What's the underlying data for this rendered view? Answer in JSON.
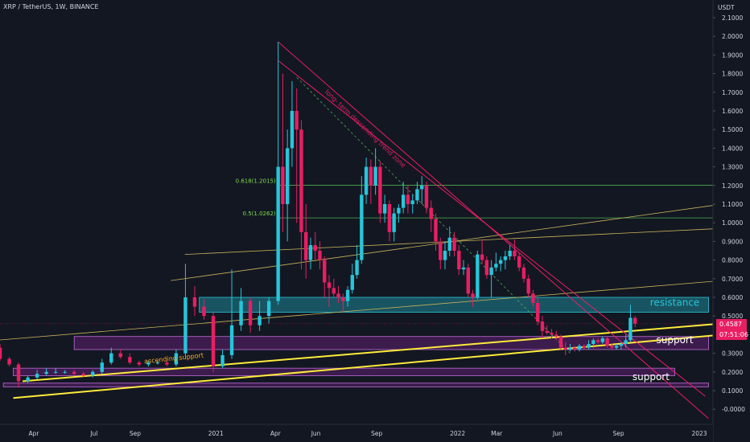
{
  "header": {
    "title": "XRP / TetherUS, 1W, BINANCE",
    "currency": "USDT"
  },
  "price_tags": {
    "last_price": "0.4587",
    "countdown": "07:51:06"
  },
  "colors": {
    "background": "#131722",
    "bull": "#26c6da",
    "bear": "#e91e63",
    "axis_text": "#d1d4dc",
    "fib": "#4caf50",
    "channel": "#c9b458",
    "support_line": "#ffeb3b",
    "zone_resistance": "#26c6da",
    "zone_support": "#9c27b0"
  },
  "chart_data": {
    "type": "candlestick",
    "title": "XRP / TetherUS, 1W, BINANCE",
    "ylabel": "USDT",
    "ylim": [
      -0.1,
      2.1
    ],
    "yticks": [
      2.1,
      2.0,
      1.9,
      1.8,
      1.7,
      1.6,
      1.5,
      1.4,
      1.3,
      1.2,
      1.1,
      1.0,
      0.9,
      0.8,
      0.7,
      0.6,
      0.5,
      0.3,
      0.2,
      0.1,
      0.0
    ],
    "ytick_labels": [
      "2.1000",
      "2.0000",
      "1.9000",
      "1.8000",
      "1.7000",
      "1.6000",
      "1.5000",
      "1.4000",
      "1.3000",
      "1.2000",
      "1.1000",
      "1.0000",
      "0.9000",
      "0.8000",
      "0.7000",
      "0.6000",
      "0.5000",
      "0.3000",
      "0.2000",
      "0.1000",
      "-0.0000"
    ],
    "xticks": [
      {
        "label": "Apr",
        "date": "2020-04-01"
      },
      {
        "label": "Jul",
        "date": "2020-07-01"
      },
      {
        "label": "Sep",
        "date": "2020-09-01"
      },
      {
        "label": "2021",
        "date": "2021-01-01"
      },
      {
        "label": "Apr",
        "date": "2021-04-01"
      },
      {
        "label": "Jun",
        "date": "2021-06-01"
      },
      {
        "label": "Sep",
        "date": "2021-09-01"
      },
      {
        "label": "2022",
        "date": "2022-01-01"
      },
      {
        "label": "Mar",
        "date": "2022-03-01"
      },
      {
        "label": "Jun",
        "date": "2022-06-01"
      },
      {
        "label": "Sep",
        "date": "2022-09-01"
      },
      {
        "label": "2023",
        "date": "2023-01-01"
      }
    ],
    "last_price": 0.4587,
    "candles": [
      {
        "d": "2020-02-10",
        "o": 0.33,
        "h": 0.35,
        "l": 0.26,
        "c": 0.27
      },
      {
        "d": "2020-02-24",
        "o": 0.27,
        "h": 0.28,
        "l": 0.23,
        "c": 0.24
      },
      {
        "d": "2020-03-09",
        "o": 0.24,
        "h": 0.25,
        "l": 0.12,
        "c": 0.15
      },
      {
        "d": "2020-03-23",
        "o": 0.15,
        "h": 0.18,
        "l": 0.14,
        "c": 0.17
      },
      {
        "d": "2020-04-06",
        "o": 0.17,
        "h": 0.21,
        "l": 0.16,
        "c": 0.19
      },
      {
        "d": "2020-04-20",
        "o": 0.19,
        "h": 0.22,
        "l": 0.18,
        "c": 0.2
      },
      {
        "d": "2020-05-04",
        "o": 0.2,
        "h": 0.22,
        "l": 0.19,
        "c": 0.2
      },
      {
        "d": "2020-05-18",
        "o": 0.2,
        "h": 0.21,
        "l": 0.19,
        "c": 0.2
      },
      {
        "d": "2020-06-01",
        "o": 0.2,
        "h": 0.21,
        "l": 0.18,
        "c": 0.19
      },
      {
        "d": "2020-06-15",
        "o": 0.19,
        "h": 0.2,
        "l": 0.17,
        "c": 0.18
      },
      {
        "d": "2020-06-29",
        "o": 0.18,
        "h": 0.21,
        "l": 0.17,
        "c": 0.2
      },
      {
        "d": "2020-07-13",
        "o": 0.2,
        "h": 0.27,
        "l": 0.19,
        "c": 0.25
      },
      {
        "d": "2020-07-27",
        "o": 0.25,
        "h": 0.33,
        "l": 0.24,
        "c": 0.3
      },
      {
        "d": "2020-08-10",
        "o": 0.3,
        "h": 0.32,
        "l": 0.27,
        "c": 0.28
      },
      {
        "d": "2020-08-24",
        "o": 0.28,
        "h": 0.3,
        "l": 0.24,
        "c": 0.25
      },
      {
        "d": "2020-09-07",
        "o": 0.25,
        "h": 0.26,
        "l": 0.23,
        "c": 0.24
      },
      {
        "d": "2020-09-21",
        "o": 0.24,
        "h": 0.26,
        "l": 0.23,
        "c": 0.25
      },
      {
        "d": "2020-10-05",
        "o": 0.25,
        "h": 0.26,
        "l": 0.24,
        "c": 0.25
      },
      {
        "d": "2020-10-19",
        "o": 0.25,
        "h": 0.26,
        "l": 0.23,
        "c": 0.24
      },
      {
        "d": "2020-11-02",
        "o": 0.24,
        "h": 0.32,
        "l": 0.23,
        "c": 0.3
      },
      {
        "d": "2020-11-16",
        "o": 0.3,
        "h": 0.78,
        "l": 0.28,
        "c": 0.6
      },
      {
        "d": "2020-11-30",
        "o": 0.6,
        "h": 0.66,
        "l": 0.5,
        "c": 0.55
      },
      {
        "d": "2020-12-14",
        "o": 0.55,
        "h": 0.59,
        "l": 0.48,
        "c": 0.5
      },
      {
        "d": "2020-12-28",
        "o": 0.5,
        "h": 0.52,
        "l": 0.2,
        "c": 0.23
      },
      {
        "d": "2021-01-11",
        "o": 0.23,
        "h": 0.32,
        "l": 0.22,
        "c": 0.29
      },
      {
        "d": "2021-01-25",
        "o": 0.29,
        "h": 0.75,
        "l": 0.27,
        "c": 0.45
      },
      {
        "d": "2021-02-08",
        "o": 0.45,
        "h": 0.65,
        "l": 0.42,
        "c": 0.58
      },
      {
        "d": "2021-02-22",
        "o": 0.58,
        "h": 0.6,
        "l": 0.41,
        "c": 0.45
      },
      {
        "d": "2021-03-08",
        "o": 0.45,
        "h": 0.58,
        "l": 0.42,
        "c": 0.5
      },
      {
        "d": "2021-03-22",
        "o": 0.5,
        "h": 0.6,
        "l": 0.46,
        "c": 0.58
      },
      {
        "d": "2021-04-05",
        "o": 0.58,
        "h": 1.97,
        "l": 0.56,
        "c": 1.3
      },
      {
        "d": "2021-04-12",
        "o": 1.3,
        "h": 1.8,
        "l": 0.95,
        "c": 1.1
      },
      {
        "d": "2021-04-19",
        "o": 1.1,
        "h": 1.5,
        "l": 0.9,
        "c": 1.4
      },
      {
        "d": "2021-04-26",
        "o": 1.4,
        "h": 1.76,
        "l": 1.3,
        "c": 1.6
      },
      {
        "d": "2021-05-03",
        "o": 1.6,
        "h": 1.72,
        "l": 1.0,
        "c": 1.5
      },
      {
        "d": "2021-05-10",
        "o": 1.5,
        "h": 1.55,
        "l": 0.75,
        "c": 0.95
      },
      {
        "d": "2021-05-17",
        "o": 0.95,
        "h": 1.1,
        "l": 0.7,
        "c": 0.8
      },
      {
        "d": "2021-05-24",
        "o": 0.8,
        "h": 0.92,
        "l": 0.75,
        "c": 0.88
      },
      {
        "d": "2021-05-31",
        "o": 0.88,
        "h": 0.95,
        "l": 0.8,
        "c": 0.85
      },
      {
        "d": "2021-06-07",
        "o": 0.85,
        "h": 0.9,
        "l": 0.75,
        "c": 0.8
      },
      {
        "d": "2021-06-14",
        "o": 0.8,
        "h": 0.82,
        "l": 0.6,
        "c": 0.68
      },
      {
        "d": "2021-06-21",
        "o": 0.68,
        "h": 0.72,
        "l": 0.55,
        "c": 0.65
      },
      {
        "d": "2021-06-28",
        "o": 0.65,
        "h": 0.7,
        "l": 0.6,
        "c": 0.62
      },
      {
        "d": "2021-07-05",
        "o": 0.62,
        "h": 0.66,
        "l": 0.57,
        "c": 0.6
      },
      {
        "d": "2021-07-12",
        "o": 0.6,
        "h": 0.62,
        "l": 0.52,
        "c": 0.58
      },
      {
        "d": "2021-07-19",
        "o": 0.58,
        "h": 0.66,
        "l": 0.55,
        "c": 0.64
      },
      {
        "d": "2021-07-26",
        "o": 0.64,
        "h": 0.78,
        "l": 0.62,
        "c": 0.72
      },
      {
        "d": "2021-08-02",
        "o": 0.72,
        "h": 0.88,
        "l": 0.7,
        "c": 0.8
      },
      {
        "d": "2021-08-09",
        "o": 0.8,
        "h": 1.25,
        "l": 0.78,
        "c": 1.15
      },
      {
        "d": "2021-08-16",
        "o": 1.15,
        "h": 1.35,
        "l": 1.1,
        "c": 1.3
      },
      {
        "d": "2021-08-23",
        "o": 1.3,
        "h": 1.34,
        "l": 1.1,
        "c": 1.2
      },
      {
        "d": "2021-08-30",
        "o": 1.2,
        "h": 1.4,
        "l": 1.15,
        "c": 1.3
      },
      {
        "d": "2021-09-06",
        "o": 1.3,
        "h": 1.33,
        "l": 1.0,
        "c": 1.05
      },
      {
        "d": "2021-09-13",
        "o": 1.05,
        "h": 1.15,
        "l": 1.0,
        "c": 1.1
      },
      {
        "d": "2021-09-20",
        "o": 1.1,
        "h": 1.12,
        "l": 0.9,
        "c": 0.95
      },
      {
        "d": "2021-09-27",
        "o": 0.95,
        "h": 1.08,
        "l": 0.9,
        "c": 1.05
      },
      {
        "d": "2021-10-04",
        "o": 1.05,
        "h": 1.1,
        "l": 1.0,
        "c": 1.08
      },
      {
        "d": "2021-10-11",
        "o": 1.08,
        "h": 1.22,
        "l": 1.05,
        "c": 1.15
      },
      {
        "d": "2021-10-18",
        "o": 1.15,
        "h": 1.2,
        "l": 1.05,
        "c": 1.1
      },
      {
        "d": "2021-10-25",
        "o": 1.1,
        "h": 1.15,
        "l": 1.05,
        "c": 1.12
      },
      {
        "d": "2021-11-01",
        "o": 1.12,
        "h": 1.22,
        "l": 1.1,
        "c": 1.18
      },
      {
        "d": "2021-11-08",
        "o": 1.18,
        "h": 1.25,
        "l": 1.1,
        "c": 1.2
      },
      {
        "d": "2021-11-15",
        "o": 1.2,
        "h": 1.22,
        "l": 1.05,
        "c": 1.08
      },
      {
        "d": "2021-11-22",
        "o": 1.08,
        "h": 1.12,
        "l": 0.95,
        "c": 1.02
      },
      {
        "d": "2021-11-29",
        "o": 1.02,
        "h": 1.05,
        "l": 0.85,
        "c": 0.9
      },
      {
        "d": "2021-12-06",
        "o": 0.9,
        "h": 0.92,
        "l": 0.75,
        "c": 0.8
      },
      {
        "d": "2021-12-13",
        "o": 0.8,
        "h": 0.9,
        "l": 0.75,
        "c": 0.85
      },
      {
        "d": "2021-12-20",
        "o": 0.85,
        "h": 0.98,
        "l": 0.82,
        "c": 0.92
      },
      {
        "d": "2021-12-27",
        "o": 0.92,
        "h": 0.95,
        "l": 0.82,
        "c": 0.85
      },
      {
        "d": "2022-01-03",
        "o": 0.85,
        "h": 0.88,
        "l": 0.72,
        "c": 0.75
      },
      {
        "d": "2022-01-10",
        "o": 0.75,
        "h": 0.8,
        "l": 0.72,
        "c": 0.76
      },
      {
        "d": "2022-01-17",
        "o": 0.76,
        "h": 0.78,
        "l": 0.6,
        "c": 0.62
      },
      {
        "d": "2022-01-24",
        "o": 0.62,
        "h": 0.64,
        "l": 0.55,
        "c": 0.6
      },
      {
        "d": "2022-01-31",
        "o": 0.6,
        "h": 0.85,
        "l": 0.59,
        "c": 0.83
      },
      {
        "d": "2022-02-07",
        "o": 0.83,
        "h": 0.91,
        "l": 0.78,
        "c": 0.8
      },
      {
        "d": "2022-02-14",
        "o": 0.8,
        "h": 0.82,
        "l": 0.7,
        "c": 0.72
      },
      {
        "d": "2022-02-21",
        "o": 0.72,
        "h": 0.8,
        "l": 0.6,
        "c": 0.76
      },
      {
        "d": "2022-02-28",
        "o": 0.76,
        "h": 0.84,
        "l": 0.74,
        "c": 0.78
      },
      {
        "d": "2022-03-07",
        "o": 0.78,
        "h": 0.82,
        "l": 0.74,
        "c": 0.8
      },
      {
        "d": "2022-03-14",
        "o": 0.8,
        "h": 0.85,
        "l": 0.75,
        "c": 0.82
      },
      {
        "d": "2022-03-21",
        "o": 0.82,
        "h": 0.88,
        "l": 0.8,
        "c": 0.85
      },
      {
        "d": "2022-03-28",
        "o": 0.85,
        "h": 0.91,
        "l": 0.8,
        "c": 0.82
      },
      {
        "d": "2022-04-04",
        "o": 0.82,
        "h": 0.84,
        "l": 0.74,
        "c": 0.76
      },
      {
        "d": "2022-04-11",
        "o": 0.76,
        "h": 0.78,
        "l": 0.68,
        "c": 0.7
      },
      {
        "d": "2022-04-18",
        "o": 0.7,
        "h": 0.72,
        "l": 0.6,
        "c": 0.62
      },
      {
        "d": "2022-04-25",
        "o": 0.62,
        "h": 0.64,
        "l": 0.55,
        "c": 0.57
      },
      {
        "d": "2022-05-02",
        "o": 0.57,
        "h": 0.6,
        "l": 0.45,
        "c": 0.47
      },
      {
        "d": "2022-05-09",
        "o": 0.47,
        "h": 0.5,
        "l": 0.38,
        "c": 0.42
      },
      {
        "d": "2022-05-16",
        "o": 0.42,
        "h": 0.45,
        "l": 0.4,
        "c": 0.41
      },
      {
        "d": "2022-05-23",
        "o": 0.41,
        "h": 0.43,
        "l": 0.38,
        "c": 0.4
      },
      {
        "d": "2022-05-30",
        "o": 0.4,
        "h": 0.42,
        "l": 0.37,
        "c": 0.39
      },
      {
        "d": "2022-06-06",
        "o": 0.39,
        "h": 0.4,
        "l": 0.32,
        "c": 0.33
      },
      {
        "d": "2022-06-13",
        "o": 0.33,
        "h": 0.36,
        "l": 0.29,
        "c": 0.32
      },
      {
        "d": "2022-06-20",
        "o": 0.32,
        "h": 0.35,
        "l": 0.31,
        "c": 0.33
      },
      {
        "d": "2022-06-27",
        "o": 0.33,
        "h": 0.34,
        "l": 0.31,
        "c": 0.32
      },
      {
        "d": "2022-07-04",
        "o": 0.32,
        "h": 0.35,
        "l": 0.31,
        "c": 0.34
      },
      {
        "d": "2022-07-11",
        "o": 0.34,
        "h": 0.35,
        "l": 0.32,
        "c": 0.33
      },
      {
        "d": "2022-07-18",
        "o": 0.33,
        "h": 0.37,
        "l": 0.32,
        "c": 0.35
      },
      {
        "d": "2022-07-25",
        "o": 0.35,
        "h": 0.38,
        "l": 0.33,
        "c": 0.37
      },
      {
        "d": "2022-08-01",
        "o": 0.37,
        "h": 0.38,
        "l": 0.35,
        "c": 0.36
      },
      {
        "d": "2022-08-08",
        "o": 0.36,
        "h": 0.39,
        "l": 0.35,
        "c": 0.38
      },
      {
        "d": "2022-08-15",
        "o": 0.38,
        "h": 0.39,
        "l": 0.33,
        "c": 0.34
      },
      {
        "d": "2022-08-22",
        "o": 0.34,
        "h": 0.35,
        "l": 0.32,
        "c": 0.33
      },
      {
        "d": "2022-08-29",
        "o": 0.33,
        "h": 0.35,
        "l": 0.32,
        "c": 0.34
      },
      {
        "d": "2022-09-05",
        "o": 0.34,
        "h": 0.36,
        "l": 0.32,
        "c": 0.35
      },
      {
        "d": "2022-09-12",
        "o": 0.35,
        "h": 0.4,
        "l": 0.33,
        "c": 0.37
      },
      {
        "d": "2022-09-19",
        "o": 0.37,
        "h": 0.56,
        "l": 0.36,
        "c": 0.49
      },
      {
        "d": "2022-09-26",
        "o": 0.49,
        "h": 0.5,
        "l": 0.44,
        "c": 0.4587
      }
    ],
    "zones": [
      {
        "name": "resistance",
        "from": "2020-12-07",
        "to": "2023-01-15",
        "low": 0.52,
        "high": 0.6,
        "label": "resistance"
      },
      {
        "name": "support-upper",
        "from": "2020-06-01",
        "to": "2023-01-15",
        "low": 0.32,
        "high": 0.39,
        "label": "support"
      },
      {
        "name": "support-lower",
        "from": "2020-03-01",
        "to": "2022-11-25",
        "low": 0.18,
        "high": 0.22,
        "label": "support"
      },
      {
        "name": "support-base",
        "from": "2020-02-15",
        "to": "2023-01-15",
        "low": 0.12,
        "high": 0.14,
        "label": ""
      }
    ],
    "fib_levels": [
      {
        "label": "0.618(1.2015)",
        "value": 1.2015,
        "from": "2021-04-05"
      },
      {
        "label": "0.5(1.0262)",
        "value": 1.0262,
        "from": "2021-04-05"
      }
    ],
    "channel_lines": [
      {
        "name": "channel-upper",
        "d1": "2020-11-15",
        "v1": 0.83,
        "d2": "2023-02-05",
        "v2": 0.97
      },
      {
        "name": "channel-mid",
        "d1": "2020-10-25",
        "v1": 0.69,
        "d2": "2023-02-05",
        "v2": 1.1
      },
      {
        "name": "channel-lower",
        "d1": "2020-01-01",
        "v1": 0.36,
        "d2": "2023-02-05",
        "v2": 0.69
      }
    ],
    "support_lines": [
      {
        "name": "ascending-support-upper",
        "d1": "2020-03-15",
        "v1": 0.15,
        "d2": "2023-02-05",
        "v2": 0.46
      },
      {
        "name": "ascending-support-lower",
        "d1": "2020-03-01",
        "v1": 0.06,
        "d2": "2023-02-05",
        "v2": 0.4
      }
    ],
    "descending_lines": [
      {
        "name": "trend-upper",
        "d1": "2021-04-05",
        "v1": 1.97,
        "d2": "2023-01-15",
        "v2": -0.05
      },
      {
        "name": "trend-lower",
        "d1": "2021-04-05",
        "v1": 1.87,
        "d2": "2023-01-10",
        "v2": 0.07
      }
    ],
    "dashed_trend": {
      "d1": "2021-05-03",
      "v1": 1.78,
      "d2": "2022-06-20",
      "v2": 0.3
    },
    "annotations": [
      {
        "text": "long- term descending trend zone",
        "d": "2021-06-14",
        "v": 1.7
      },
      {
        "text": "ascending support",
        "d": "2020-09-15",
        "v": 0.245
      },
      {
        "text": "resistance",
        "d": "2022-11-25",
        "v": 0.555
      },
      {
        "text": "support",
        "d": "2022-11-25",
        "v": 0.355
      },
      {
        "text": "support",
        "d": "2022-10-20",
        "v": 0.155
      }
    ]
  }
}
